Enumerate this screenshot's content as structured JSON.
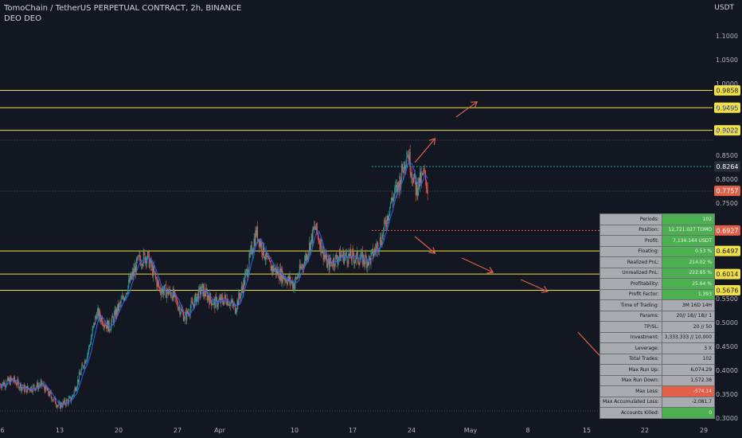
{
  "header": {
    "title": "TomoChain / TetherUS PERPETUAL CONTRACT, 2h, BINANCE",
    "indicator": "DEO DEO"
  },
  "colors": {
    "background": "#131722",
    "up": "#26a69a",
    "down": "#ef5350",
    "level_line": "#f0e04a",
    "ma": "#2962ff",
    "arrow": "#e0604a"
  },
  "chart_data": {
    "type": "candlestick",
    "symbol": "TOMOUSDT.P",
    "timeframe": "2h",
    "y_unit": "USDT",
    "ylim": [
      0.29,
      1.18
    ],
    "x_ticks": [
      "6",
      "13",
      "20",
      "27",
      "Apr",
      "10",
      "17",
      "24",
      "May",
      "8",
      "15",
      "22",
      "29"
    ],
    "y_ticks": [
      "1.1000",
      "1.0500",
      "1.0000",
      "0.9500",
      "0.9000",
      "0.8500",
      "0.8000",
      "0.7500",
      "0.5500",
      "0.5000",
      "0.4500",
      "0.4000",
      "0.3500",
      "0.3000"
    ],
    "price_path": [
      [
        0,
        0.37
      ],
      [
        1.5,
        0.38
      ],
      [
        3,
        0.36
      ],
      [
        5,
        0.37
      ],
      [
        7,
        0.325
      ],
      [
        8.5,
        0.34
      ],
      [
        10.5,
        0.44
      ],
      [
        11.5,
        0.52
      ],
      [
        13,
        0.49
      ],
      [
        14.5,
        0.545
      ],
      [
        16.5,
        0.63
      ],
      [
        17.5,
        0.64
      ],
      [
        19,
        0.57
      ],
      [
        20.5,
        0.56
      ],
      [
        22,
        0.51
      ],
      [
        24,
        0.57
      ],
      [
        25.5,
        0.54
      ],
      [
        27,
        0.55
      ],
      [
        28,
        0.53
      ],
      [
        29,
        0.58
      ],
      [
        30.5,
        0.69
      ],
      [
        32,
        0.62
      ],
      [
        33.5,
        0.6
      ],
      [
        35,
        0.58
      ],
      [
        36.5,
        0.64
      ],
      [
        37.5,
        0.7
      ],
      [
        39,
        0.62
      ],
      [
        40.5,
        0.64
      ],
      [
        42.5,
        0.635
      ],
      [
        44,
        0.63
      ],
      [
        45.5,
        0.68
      ],
      [
        46.5,
        0.75
      ],
      [
        47.5,
        0.79
      ],
      [
        48.5,
        0.86
      ],
      [
        49.5,
        0.78
      ],
      [
        50.5,
        0.81
      ],
      [
        51,
        0.775
      ]
    ],
    "levels": [
      {
        "label": "0.9858",
        "value": 0.9858,
        "color": "yellow"
      },
      {
        "label": "0.9495",
        "value": 0.9495,
        "color": "yellow"
      },
      {
        "label": "0.9022",
        "value": 0.9022,
        "color": "yellow"
      },
      {
        "label": "0.6497",
        "value": 0.6497,
        "color": "yellow"
      },
      {
        "label": "0.6014",
        "value": 0.6014,
        "color": "yellow"
      },
      {
        "label": "0.5676",
        "value": 0.5676,
        "color": "yellow"
      }
    ],
    "price_labels": [
      {
        "label": "0.8264",
        "value": 0.8264,
        "color": "#2a2e39",
        "line": "#26a69a"
      },
      {
        "label": "0.7757",
        "value": 0.7757,
        "color": "#e0604a",
        "line": null
      },
      {
        "label": "0.6927",
        "value": 0.6927,
        "color": "#e0604a",
        "line": "#ef5350"
      }
    ],
    "projection_up": [
      [
        49.4,
        0.835
      ],
      [
        51.8,
        0.885
      ],
      [
        54.3,
        0.93
      ],
      [
        56.8,
        0.962
      ],
      [
        59.3,
        0.99
      ]
    ],
    "projection_down": [
      [
        49.4,
        0.68
      ],
      [
        51.8,
        0.645
      ],
      [
        55,
        0.635
      ],
      [
        58.7,
        0.605
      ],
      [
        62,
        0.59
      ],
      [
        65.2,
        0.565
      ],
      [
        68.8,
        0.48
      ],
      [
        72.5,
        0.41
      ]
    ]
  },
  "stats_table": [
    {
      "k": "Periods:",
      "v": "102",
      "style": "green"
    },
    {
      "k": "Position:",
      "v": "12,721.027 TOMO",
      "style": "green"
    },
    {
      "k": "Profit:",
      "v": "7,134.144 USDT",
      "style": "green"
    },
    {
      "k": "Floating:",
      "v": "0.53 %",
      "style": "green"
    },
    {
      "k": "Realized PnL:",
      "v": "214.02 %",
      "style": "green"
    },
    {
      "k": "Unrealized PnL:",
      "v": "222.65 %",
      "style": "green"
    },
    {
      "k": "Profitability:",
      "v": "25.64 %",
      "style": "green"
    },
    {
      "k": "Profit Factor:",
      "v": "1.393",
      "style": "green"
    },
    {
      "k": "Time of Trading:",
      "v": "3M 16D 14H",
      "style": ""
    },
    {
      "k": "Params:",
      "v": "20// 18// 18// 1",
      "style": ""
    },
    {
      "k": "TP/SL:",
      "v": "20 // 50",
      "style": ""
    },
    {
      "k": "Investment:",
      "v": "3,333.333 // 10,000",
      "style": ""
    },
    {
      "k": "Leverage:",
      "v": "3 X",
      "style": ""
    },
    {
      "k": "Total Trades:",
      "v": "102",
      "style": ""
    },
    {
      "k": "Max Run Up:",
      "v": "6,074.29",
      "style": ""
    },
    {
      "k": "Max Run Down:",
      "v": "1,572.38",
      "style": ""
    },
    {
      "k": "Max Loss:",
      "v": "-574.14",
      "style": "red"
    },
    {
      "k": "Max Accumulated Loss:",
      "v": "-2,081.7",
      "style": ""
    },
    {
      "k": "Accounts Killed:",
      "v": "0",
      "style": "green"
    }
  ]
}
